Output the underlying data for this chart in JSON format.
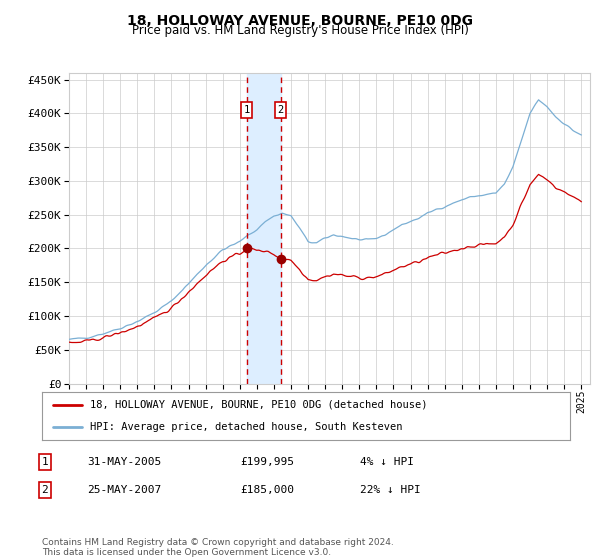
{
  "title": "18, HOLLOWAY AVENUE, BOURNE, PE10 0DG",
  "subtitle": "Price paid vs. HM Land Registry's House Price Index (HPI)",
  "yticks": [
    0,
    50000,
    100000,
    150000,
    200000,
    250000,
    300000,
    350000,
    400000,
    450000
  ],
  "ytick_labels": [
    "£0",
    "£50K",
    "£100K",
    "£150K",
    "£200K",
    "£250K",
    "£300K",
    "£350K",
    "£400K",
    "£450K"
  ],
  "sale1_year": 2005.41,
  "sale1_price": 199995,
  "sale2_year": 2007.4,
  "sale2_price": 185000,
  "legend_line1": "18, HOLLOWAY AVENUE, BOURNE, PE10 0DG (detached house)",
  "legend_line2": "HPI: Average price, detached house, South Kesteven",
  "table_row1": [
    "1",
    "31-MAY-2005",
    "£199,995",
    "4% ↓ HPI"
  ],
  "table_row2": [
    "2",
    "25-MAY-2007",
    "£185,000",
    "22% ↓ HPI"
  ],
  "footer": "Contains HM Land Registry data © Crown copyright and database right 2024.\nThis data is licensed under the Open Government Licence v3.0.",
  "hpi_color": "#7bafd4",
  "price_color": "#cc0000",
  "marker_color": "#990000",
  "shade_color": "#ddeeff",
  "dashed_color": "#cc0000",
  "grid_color": "#cccccc",
  "bg_color": "#ffffff"
}
